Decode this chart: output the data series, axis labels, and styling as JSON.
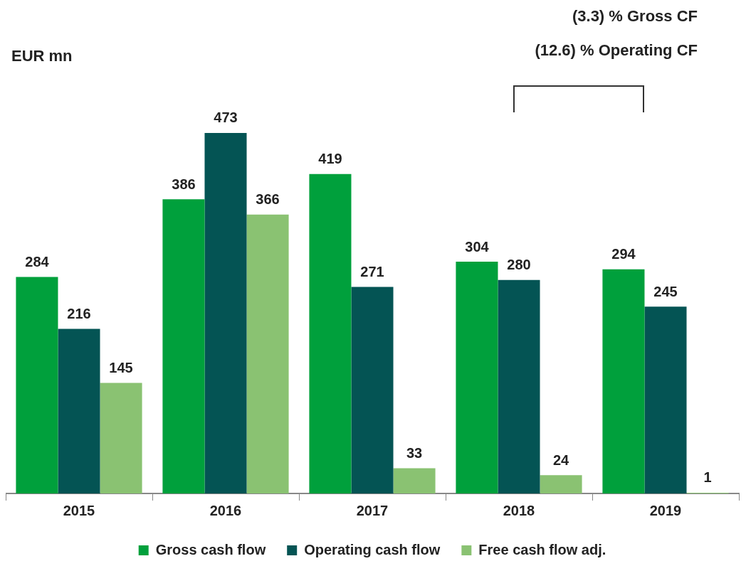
{
  "chart_data": {
    "type": "bar",
    "ylabel": "EUR mn",
    "categories": [
      "2015",
      "2016",
      "2017",
      "2018",
      "2019"
    ],
    "series": [
      {
        "name": "Gross cash flow",
        "color": "#00a03c",
        "values": [
          284,
          386,
          419,
          304,
          294
        ]
      },
      {
        "name": "Operating cash flow",
        "color": "#045454",
        "values": [
          216,
          473,
          271,
          280,
          245
        ]
      },
      {
        "name": "Free cash flow adj.",
        "color": "#8ac272",
        "values": [
          145,
          366,
          33,
          24,
          1
        ]
      }
    ],
    "annotations": [
      "(3.3)  % Gross CF",
      "(12.6)  % Operating CF"
    ],
    "data_labels": true,
    "legend": "bottom",
    "grid": false
  }
}
